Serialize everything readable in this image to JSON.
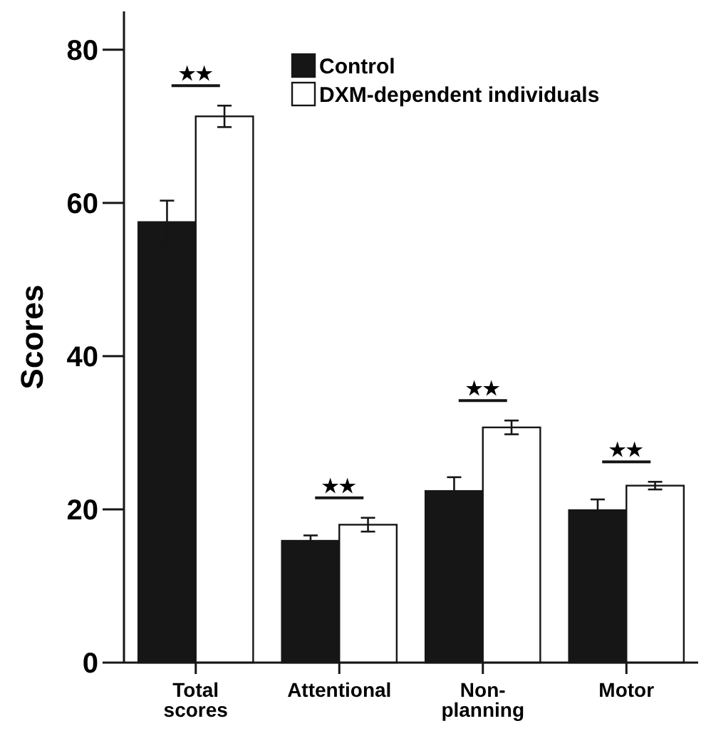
{
  "chart_data": {
    "type": "bar",
    "ylabel": "Scores",
    "categories": [
      "Total scores",
      "Attentional",
      "Non-planning",
      "Motor"
    ],
    "series": [
      {
        "name": "Control",
        "color": "#161616",
        "values": [
          57.5,
          15.9,
          22.4,
          19.9
        ],
        "errors": [
          2.8,
          0.7,
          1.8,
          1.4
        ]
      },
      {
        "name": "DXM-dependent individuals",
        "color": "#ffffff",
        "values": [
          71.3,
          18.0,
          30.7,
          23.1
        ],
        "errors": [
          1.4,
          0.9,
          0.9,
          0.5
        ]
      }
    ],
    "ylim": [
      0,
      85
    ],
    "yticks": [
      0,
      20,
      40,
      60,
      80
    ],
    "grid": false,
    "legend": "top right",
    "annotations": [
      "★★",
      "★★",
      "★★",
      "★★"
    ]
  }
}
